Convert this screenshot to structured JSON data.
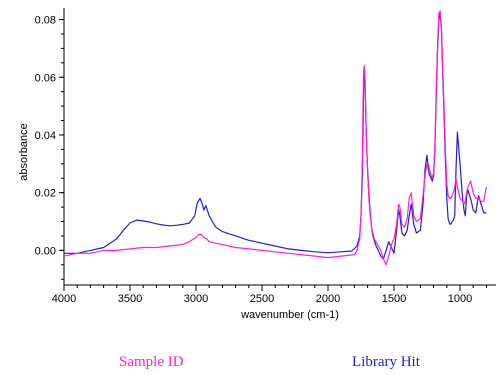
{
  "chart_data": {
    "type": "line",
    "xlabel": "wavenumber (cm-1)",
    "ylabel": "absorbance",
    "xlim": [
      4000,
      800
    ],
    "ylim": [
      -0.012,
      0.084
    ],
    "x_reversed": true,
    "x_ticks": [
      "4000",
      "3500",
      "3000",
      "2500",
      "2000",
      "1500",
      "1000"
    ],
    "x_tick_values": [
      4000,
      3500,
      3000,
      2500,
      2000,
      1500,
      1000
    ],
    "y_ticks": [
      "0.08",
      "0.06",
      "0.04",
      "0.02",
      "0.00"
    ],
    "y_tick_values": [
      0.08,
      0.06,
      0.04,
      0.02,
      0.0
    ],
    "grid": false,
    "series": [
      {
        "name": "Library Hit",
        "color": "#1f1fd6",
        "x": [
          4000,
          3900,
          3800,
          3700,
          3600,
          3550,
          3500,
          3450,
          3400,
          3350,
          3300,
          3250,
          3200,
          3150,
          3100,
          3050,
          3010,
          2990,
          2970,
          2955,
          2940,
          2925,
          2900,
          2870,
          2850,
          2800,
          2700,
          2600,
          2500,
          2400,
          2300,
          2200,
          2100,
          2000,
          1900,
          1820,
          1780,
          1760,
          1750,
          1740,
          1735,
          1730,
          1725,
          1720,
          1715,
          1710,
          1700,
          1690,
          1680,
          1670,
          1660,
          1640,
          1620,
          1600,
          1580,
          1560,
          1540,
          1520,
          1500,
          1480,
          1465,
          1455,
          1440,
          1420,
          1400,
          1385,
          1370,
          1350,
          1330,
          1300,
          1280,
          1265,
          1250,
          1240,
          1230,
          1220,
          1210,
          1200,
          1190,
          1180,
          1170,
          1160,
          1150,
          1140,
          1130,
          1120,
          1110,
          1100,
          1090,
          1080,
          1070,
          1060,
          1050,
          1040,
          1030,
          1020,
          1000,
          980,
          970,
          960,
          950,
          940,
          920,
          900,
          880,
          860,
          840,
          820,
          800
        ],
        "y": [
          -0.001,
          -0.001,
          0.0,
          0.001,
          0.004,
          0.007,
          0.0095,
          0.0105,
          0.0102,
          0.0098,
          0.0092,
          0.0088,
          0.0085,
          0.0087,
          0.009,
          0.0095,
          0.012,
          0.0165,
          0.018,
          0.0165,
          0.014,
          0.0155,
          0.012,
          0.0095,
          0.008,
          0.0065,
          0.005,
          0.0035,
          0.0025,
          0.0015,
          0.0005,
          0.0,
          -0.0005,
          -0.0008,
          -0.0005,
          -0.0002,
          0.0015,
          0.005,
          0.012,
          0.025,
          0.04,
          0.055,
          0.063,
          0.059,
          0.05,
          0.04,
          0.028,
          0.02,
          0.013,
          0.008,
          0.005,
          0.002,
          0.0,
          -0.002,
          -0.003,
          0.0,
          0.003,
          0.001,
          -0.001,
          0.007,
          0.014,
          0.012,
          0.006,
          0.005,
          0.007,
          0.012,
          0.016,
          0.009,
          0.006,
          0.007,
          0.016,
          0.028,
          0.033,
          0.028,
          0.026,
          0.025,
          0.024,
          0.026,
          0.035,
          0.052,
          0.07,
          0.08,
          0.082,
          0.076,
          0.06,
          0.045,
          0.03,
          0.018,
          0.011,
          0.0095,
          0.009,
          0.01,
          0.0105,
          0.012,
          0.028,
          0.041,
          0.03,
          0.018,
          0.014,
          0.012,
          0.019,
          0.021,
          0.018,
          0.014,
          0.013,
          0.019,
          0.016,
          0.013,
          0.013
        ]
      },
      {
        "name": "Sample ID",
        "color": "#ff1fd2",
        "x": [
          4000,
          3900,
          3800,
          3700,
          3600,
          3500,
          3400,
          3300,
          3200,
          3100,
          3050,
          3000,
          2980,
          2960,
          2940,
          2920,
          2900,
          2850,
          2800,
          2700,
          2600,
          2500,
          2400,
          2300,
          2200,
          2100,
          2000,
          1900,
          1800,
          1780,
          1760,
          1750,
          1740,
          1735,
          1730,
          1725,
          1720,
          1715,
          1710,
          1700,
          1690,
          1680,
          1670,
          1650,
          1620,
          1600,
          1580,
          1560,
          1540,
          1520,
          1500,
          1480,
          1465,
          1455,
          1440,
          1420,
          1400,
          1385,
          1370,
          1350,
          1330,
          1300,
          1280,
          1265,
          1250,
          1240,
          1230,
          1220,
          1210,
          1200,
          1190,
          1180,
          1170,
          1160,
          1150,
          1140,
          1130,
          1120,
          1110,
          1100,
          1090,
          1080,
          1070,
          1060,
          1050,
          1040,
          1030,
          1020,
          1000,
          980,
          970,
          960,
          950,
          940,
          920,
          900,
          880,
          860,
          840,
          820,
          800
        ],
        "y": [
          -0.002,
          -0.001,
          -0.001,
          0.0,
          0.0,
          0.0005,
          0.001,
          0.001,
          0.0015,
          0.002,
          0.003,
          0.0045,
          0.0055,
          0.0055,
          0.0045,
          0.004,
          0.003,
          0.0025,
          0.002,
          0.001,
          0.0005,
          0.0,
          -0.0005,
          -0.001,
          -0.0015,
          -0.002,
          -0.0025,
          -0.002,
          -0.0015,
          0.0,
          0.004,
          0.012,
          0.03,
          0.05,
          0.062,
          0.064,
          0.06,
          0.05,
          0.04,
          0.027,
          0.018,
          0.012,
          0.008,
          0.004,
          0.0015,
          0.0,
          -0.003,
          -0.005,
          -0.002,
          0.002,
          0.004,
          0.009,
          0.016,
          0.015,
          0.009,
          0.008,
          0.011,
          0.018,
          0.02,
          0.012,
          0.01,
          0.011,
          0.019,
          0.026,
          0.03,
          0.03,
          0.028,
          0.026,
          0.025,
          0.027,
          0.037,
          0.055,
          0.072,
          0.082,
          0.083,
          0.077,
          0.063,
          0.048,
          0.034,
          0.023,
          0.019,
          0.018,
          0.018,
          0.019,
          0.02,
          0.022,
          0.025,
          0.022,
          0.018,
          0.017,
          0.016,
          0.017,
          0.02,
          0.022,
          0.024,
          0.02,
          0.018,
          0.018,
          0.017,
          0.017,
          0.022
        ]
      }
    ]
  },
  "legend": {
    "sample_label": "Sample ID",
    "sample_color": "#ff1fd2",
    "library_label": "Library Hit",
    "library_color": "#1f1fd6"
  }
}
